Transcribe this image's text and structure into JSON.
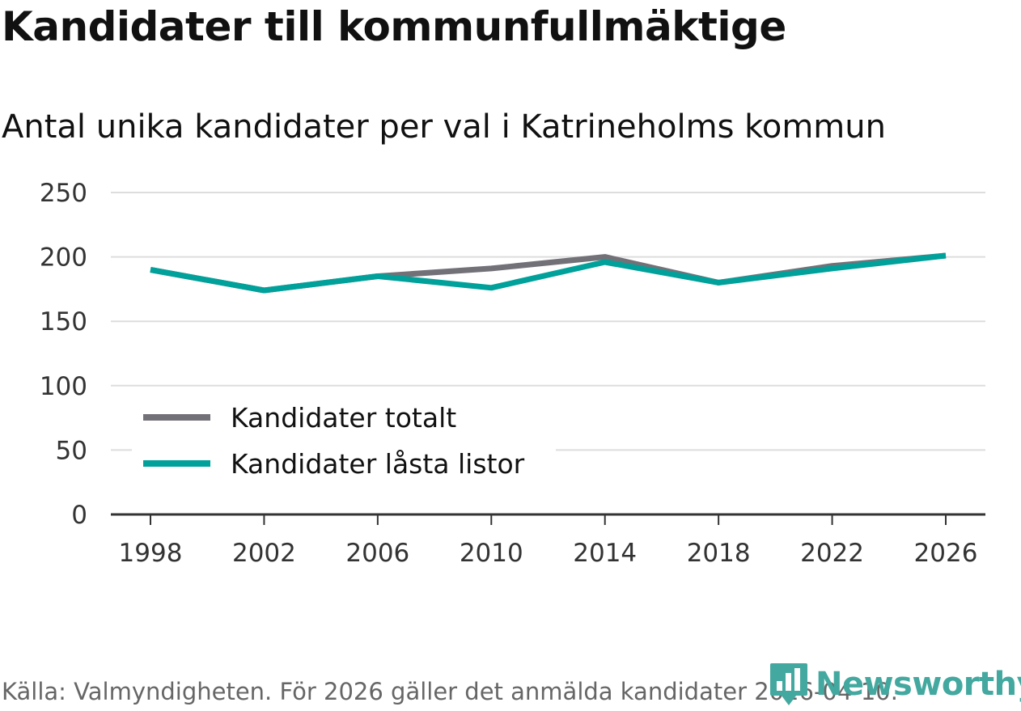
{
  "header": {
    "title": "Kandidater till kommunfullmäktige",
    "subtitle": "Antal unika kandidater per val i Katrineholms kommun"
  },
  "footer": {
    "source": "Källa: Valmyndigheten. För 2026 gäller det anmälda kandidater 2026-04-10.",
    "brand": "Newsworthy"
  },
  "colors": {
    "total": "#737178",
    "locked": "#00a19a",
    "grid": "#dddddd",
    "axis": "#333333",
    "brand": "#43a89f"
  },
  "chart_data": {
    "type": "line",
    "title": "Kandidater till kommunfullmäktige",
    "subtitle": "Antal unika kandidater per val i Katrineholms kommun",
    "xlabel": "",
    "ylabel": "",
    "x": [
      "1998",
      "2002",
      "2006",
      "2010",
      "2014",
      "2018",
      "2022",
      "2026"
    ],
    "ylim": [
      0,
      250
    ],
    "yticks": [
      0,
      50,
      100,
      150,
      200,
      250
    ],
    "grid": true,
    "legend_position": "bottom-left",
    "series": [
      {
        "name": "Kandidater totalt",
        "color": "#737178",
        "values": [
          190,
          174,
          185,
          191,
          200,
          180,
          193,
          201
        ]
      },
      {
        "name": "Kandidater låsta listor",
        "color": "#00a19a",
        "values": [
          190,
          174,
          185,
          176,
          196,
          180,
          191,
          201
        ]
      }
    ]
  }
}
